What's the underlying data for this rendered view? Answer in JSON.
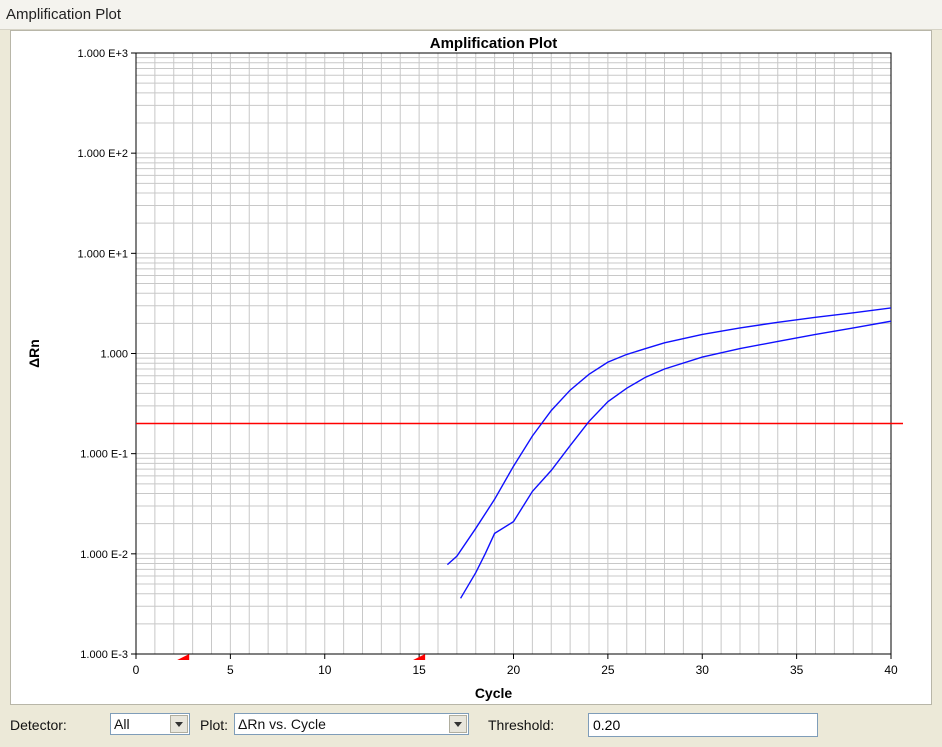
{
  "window": {
    "title": "Amplification Plot"
  },
  "controls": {
    "detector_label": "Detector:",
    "detector_value": "All",
    "plot_label": "Plot:",
    "plot_value": "ΔRn vs. Cycle",
    "threshold_label": "Threshold:",
    "threshold_value": "0.20"
  },
  "chart_data": {
    "type": "line",
    "title": "Amplification Plot",
    "xlabel": "Cycle",
    "ylabel": "ΔRn",
    "xlim": [
      0,
      40
    ],
    "ylim": [
      0.001,
      1000
    ],
    "y_scale": "log",
    "x_ticks": [
      0,
      5,
      10,
      15,
      20,
      25,
      30,
      35,
      40
    ],
    "y_ticks": [
      {
        "value": 0.001,
        "label": "1.000 E-3"
      },
      {
        "value": 0.01,
        "label": "1.000 E-2"
      },
      {
        "value": 0.1,
        "label": "1.000 E-1"
      },
      {
        "value": 1,
        "label": "1.000"
      },
      {
        "value": 10,
        "label": "1.000 E+1"
      },
      {
        "value": 100,
        "label": "1.000 E+2"
      },
      {
        "value": 1000,
        "label": "1.000 E+3"
      }
    ],
    "grid": true,
    "threshold": 0.2,
    "threshold_color": "#ff0000",
    "series_color": "#1010ff",
    "baseline_markers": [
      2.5,
      15
    ],
    "series": [
      {
        "x": [
          16.5,
          17,
          18,
          19,
          20,
          21,
          22,
          23,
          24,
          25,
          26,
          27,
          28,
          30,
          32,
          34,
          36,
          38,
          40
        ],
        "y": [
          0.0078,
          0.0095,
          0.018,
          0.035,
          0.075,
          0.15,
          0.27,
          0.43,
          0.62,
          0.82,
          0.98,
          1.12,
          1.28,
          1.55,
          1.8,
          2.05,
          2.3,
          2.55,
          2.85
        ]
      },
      {
        "x": [
          17.2,
          18,
          18.5,
          19,
          20,
          21,
          22,
          23,
          24,
          25,
          26,
          27,
          28,
          30,
          32,
          34,
          36,
          38,
          40
        ],
        "y": [
          0.0036,
          0.0065,
          0.01,
          0.016,
          0.021,
          0.042,
          0.068,
          0.12,
          0.21,
          0.33,
          0.45,
          0.58,
          0.7,
          0.92,
          1.12,
          1.32,
          1.55,
          1.8,
          2.1
        ]
      }
    ]
  }
}
